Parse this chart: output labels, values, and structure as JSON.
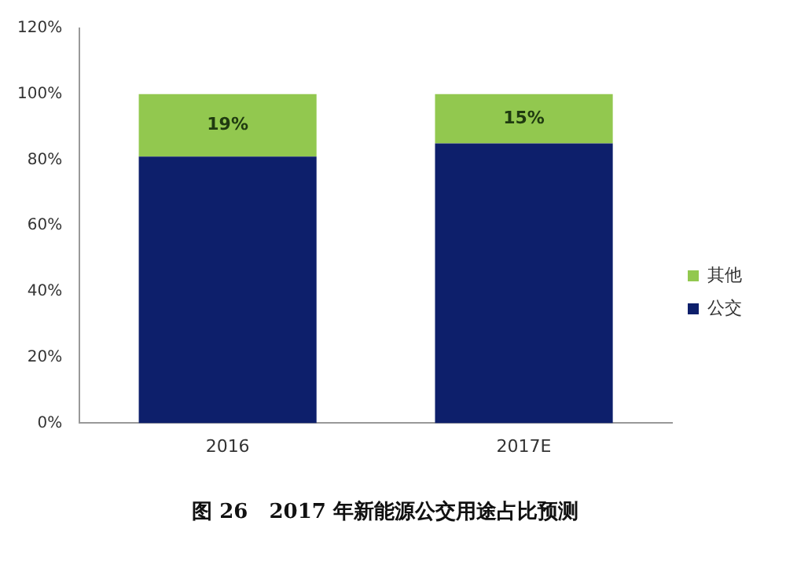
{
  "chart_data": {
    "type": "bar",
    "title": "图 26   2017 年新能源公交用途占比预测",
    "categories": [
      "2016",
      "2017E"
    ],
    "stacked": true,
    "series": [
      {
        "name": "公交",
        "color": "#0d1f6b",
        "values": [
          81,
          85
        ]
      },
      {
        "name": "其他",
        "color": "#92c84f",
        "values": [
          19,
          15
        ],
        "value_labels": [
          "19%",
          "15%"
        ]
      }
    ],
    "ylim": [
      0,
      120
    ],
    "yticks": [
      {
        "value": 0,
        "label": "0%"
      },
      {
        "value": 20,
        "label": "20%"
      },
      {
        "value": 40,
        "label": "40%"
      },
      {
        "value": 60,
        "label": "60%"
      },
      {
        "value": 80,
        "label": "80%"
      },
      {
        "value": 100,
        "label": "100%"
      },
      {
        "value": 120,
        "label": "120%"
      }
    ],
    "grid": false,
    "legend": "right"
  }
}
